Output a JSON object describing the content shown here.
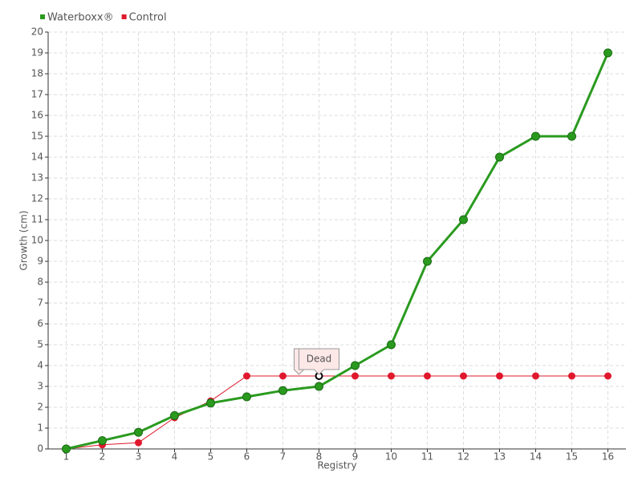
{
  "chart_data": {
    "type": "line",
    "categories": [
      "1",
      "2",
      "3",
      "4",
      "5",
      "6",
      "7",
      "8",
      "9",
      "10",
      "11",
      "12",
      "13",
      "14",
      "15",
      "16"
    ],
    "series": [
      {
        "name": "Waterboxx®",
        "color": "#2a9a1f",
        "values": [
          0,
          0.4,
          0.8,
          1.6,
          2.2,
          2.5,
          2.8,
          3.0,
          4,
          5,
          9,
          11,
          14,
          15,
          15,
          19
        ]
      },
      {
        "name": "Control",
        "color": "#e0182d",
        "values": [
          0,
          0.2,
          0.3,
          1.5,
          2.3,
          3.5,
          3.5,
          3.5,
          3.5,
          3.5,
          3.5,
          3.5,
          3.5,
          3.5,
          3.5,
          3.5
        ]
      }
    ],
    "annotation": {
      "text": "Dead",
      "series": "Control",
      "category": "8"
    },
    "x_label": "Registry",
    "y_label": "Growth (cm)",
    "ylim": [
      0,
      20
    ],
    "yticks": [
      0,
      1,
      2,
      3,
      4,
      5,
      6,
      7,
      8,
      9,
      10,
      11,
      12,
      13,
      14,
      15,
      16,
      17,
      18,
      19,
      20
    ],
    "grid": true,
    "legend": "top-left"
  }
}
